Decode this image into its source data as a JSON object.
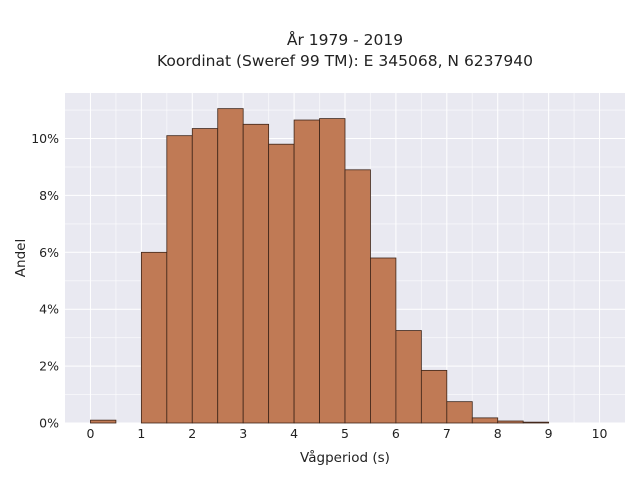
{
  "chart_data": {
    "type": "bar",
    "title_lines": [
      "År 1979 - 2019",
      "Koordinat (Sweref 99 TM): E 345068, N 6237940"
    ],
    "xlabel": "Vågperiod (s)",
    "ylabel": "Andel",
    "x_ticks": [
      "0",
      "1",
      "2",
      "3",
      "4",
      "5",
      "6",
      "7",
      "8",
      "9",
      "10"
    ],
    "y_ticks": [
      "0%",
      "2%",
      "4%",
      "6%",
      "8%",
      "10%"
    ],
    "y_tick_values": [
      0,
      2,
      4,
      6,
      8,
      10
    ],
    "xlim": [
      -0.5,
      10.5
    ],
    "ylim": [
      0,
      11.6
    ],
    "bin_width": 0.5,
    "bin_starts": [
      0,
      0.5,
      1.0,
      1.5,
      2.0,
      2.5,
      3.0,
      3.5,
      4.0,
      4.5,
      5.0,
      5.5,
      6.0,
      6.5,
      7.0,
      7.5,
      8.0,
      8.5,
      9.0,
      9.5
    ],
    "values": [
      0.1,
      0,
      6.0,
      10.1,
      10.35,
      11.05,
      10.5,
      9.8,
      10.65,
      10.7,
      8.9,
      5.8,
      3.25,
      1.85,
      0.75,
      0.18,
      0.07,
      0.03,
      0,
      0
    ],
    "grid": true,
    "background": "#e9e9f1",
    "bar_color": "#c07a55",
    "bar_edge_color": "#3d2418"
  }
}
